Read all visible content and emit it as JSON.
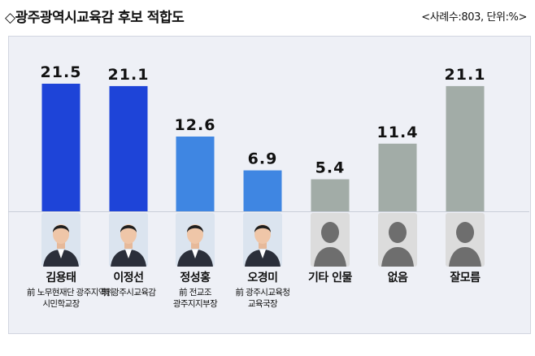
{
  "header": {
    "title": "◇광주광역시교육감 후보 적합도",
    "note": "<사례수:803, 단위:%>"
  },
  "colors": {
    "blue_dark": "#1e44d8",
    "blue_light": "#3f86e2",
    "gray": "#a2aca7"
  },
  "candidates": [
    {
      "name": "김용태",
      "desc": [
        "前 노무현재단 광주지역위",
        "시민학교장"
      ],
      "photo": "person-photo"
    },
    {
      "name": "이정선",
      "desc": [
        "現 광주시교육감"
      ],
      "photo": "person-photo"
    },
    {
      "name": "정성홍",
      "desc": [
        "前 전교조",
        "광주지지부장"
      ],
      "photo": "person-photo"
    },
    {
      "name": "오경미",
      "desc": [
        "前 광주시교육청",
        "교육국장"
      ],
      "photo": "person-photo"
    },
    {
      "name": "기타 인물",
      "desc": [],
      "photo": "silhouette"
    },
    {
      "name": "없음",
      "desc": [],
      "photo": "silhouette"
    },
    {
      "name": "잘모름",
      "desc": [],
      "photo": "silhouette"
    }
  ],
  "chart_data": {
    "type": "bar",
    "categories": [
      "김용태",
      "이정선",
      "정성홍",
      "오경미",
      "기타 인물",
      "없음",
      "잘모름"
    ],
    "values": [
      21.5,
      21.1,
      12.6,
      6.9,
      5.4,
      11.4,
      21.1
    ],
    "value_labels": [
      "21.5",
      "21.1",
      "12.6",
      "6.9",
      "5.4",
      "11.4",
      "21.1"
    ],
    "bar_colors": [
      "#1e44d8",
      "#1e44d8",
      "#3f86e2",
      "#3f86e2",
      "#a2aca7",
      "#a2aca7",
      "#a2aca7"
    ],
    "ylim": [
      0,
      21.5
    ],
    "title": "◇광주광역시교육감 후보 적합도",
    "xlabel": "",
    "ylabel": "",
    "grid": false,
    "legend": "none"
  }
}
